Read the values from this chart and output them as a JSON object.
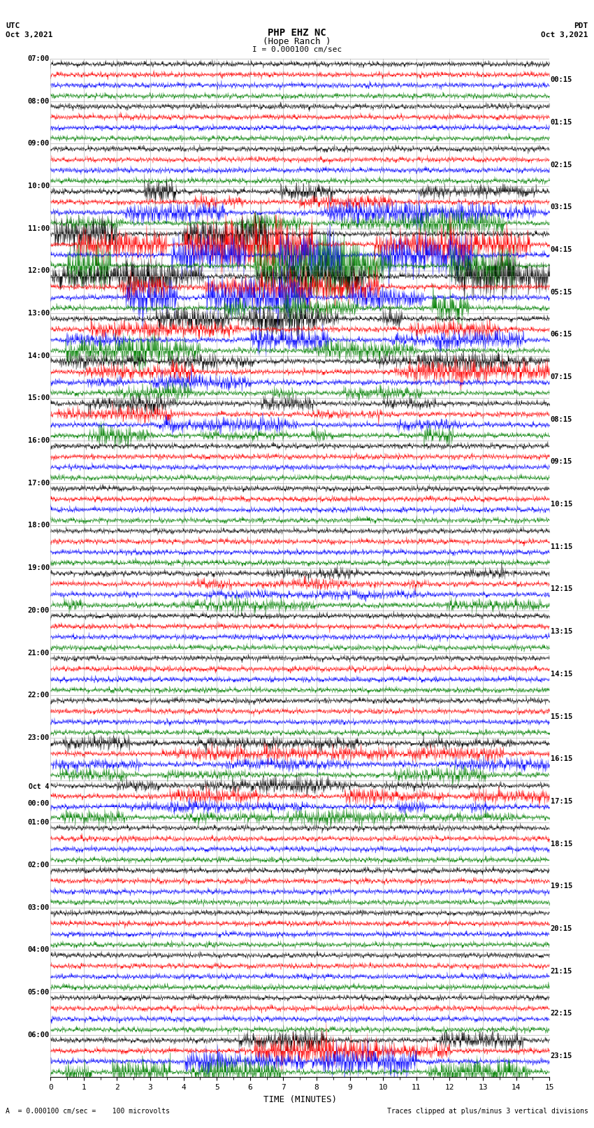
{
  "title_line1": "PHP EHZ NC",
  "title_line2": "(Hope Ranch )",
  "title_line3": "I = 0.000100 cm/sec",
  "utc_label": "UTC",
  "utc_date": "Oct 3,2021",
  "pdt_label": "PDT",
  "pdt_date": "Oct 3,2021",
  "xlabel": "TIME (MINUTES)",
  "footer_left": "A  = 0.000100 cm/sec =    100 microvolts",
  "footer_right": "Traces clipped at plus/minus 3 vertical divisions",
  "left_times": [
    "07:00",
    "08:00",
    "09:00",
    "10:00",
    "11:00",
    "12:00",
    "13:00",
    "14:00",
    "15:00",
    "16:00",
    "17:00",
    "18:00",
    "19:00",
    "20:00",
    "21:00",
    "22:00",
    "23:00",
    "Oct 4\n00:00",
    "01:00",
    "02:00",
    "03:00",
    "04:00",
    "05:00",
    "06:00"
  ],
  "right_times": [
    "00:15",
    "01:15",
    "02:15",
    "03:15",
    "04:15",
    "05:15",
    "06:15",
    "07:15",
    "08:15",
    "09:15",
    "10:15",
    "11:15",
    "12:15",
    "13:15",
    "14:15",
    "15:15",
    "16:15",
    "17:15",
    "18:15",
    "19:15",
    "20:15",
    "21:15",
    "22:15",
    "23:15"
  ],
  "num_rows": 24,
  "traces_per_row": 4,
  "minutes_per_row": 15,
  "trace_colors": [
    "black",
    "red",
    "blue",
    "green"
  ],
  "background_color": "white",
  "fig_width": 8.5,
  "fig_height": 16.13,
  "dpi": 100,
  "seed": 42,
  "samples_per_minute": 200,
  "base_amplitude": 0.35,
  "fill_amplitude": 0.42,
  "event_rows": [
    3,
    4,
    5,
    6,
    7,
    8,
    12,
    16,
    17,
    23
  ],
  "event_amplitudes": [
    1.2,
    2.5,
    1.8,
    1.2,
    1.0,
    0.8,
    0.6,
    0.7,
    0.7,
    1.5
  ]
}
